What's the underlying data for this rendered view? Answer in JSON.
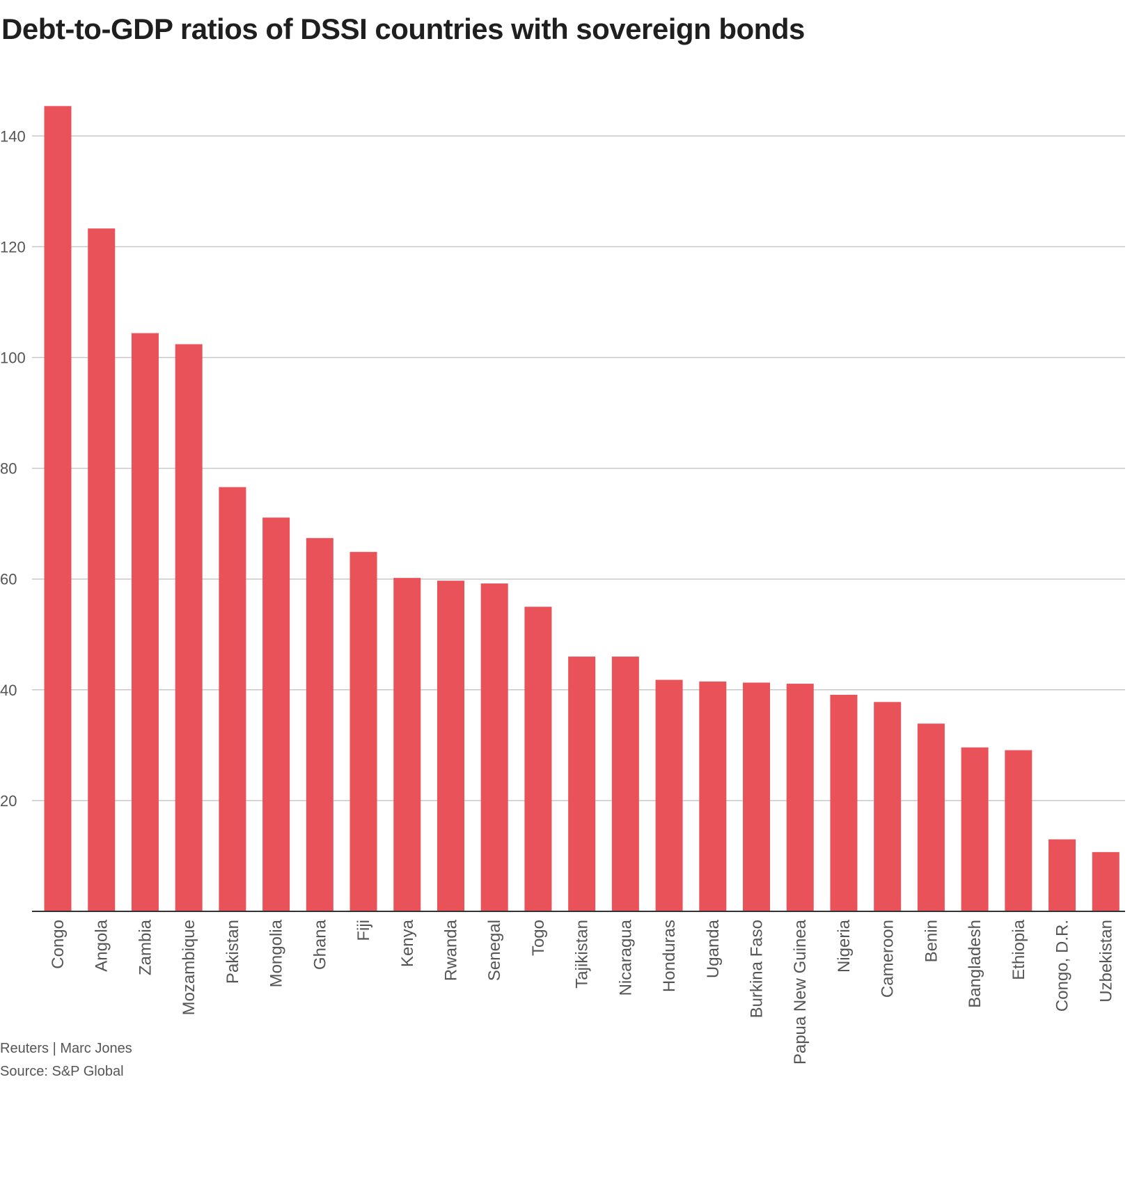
{
  "title": "Debt-to-GDP ratios of DSSI countries with sovereign  bonds",
  "credit": "Reuters | Marc Jones",
  "source": "Source: S&P Global",
  "chart_data": {
    "type": "bar",
    "categories": [
      "Congo",
      "Angola",
      "Zambia",
      "Mozambique",
      "Pakistan",
      "Mongolia",
      "Ghana",
      "Fiji",
      "Kenya",
      "Rwanda",
      "Senegal",
      "Togo",
      "Tajikistan",
      "Nicaragua",
      "Honduras",
      "Uganda",
      "Burkina Faso",
      "Papua New Guinea",
      "Nigeria",
      "Cameroon",
      "Benin",
      "Bangladesh",
      "Ethiopia",
      "Congo, D.R.",
      "Uzbekistan"
    ],
    "values": [
      145.4,
      123.3,
      104.4,
      102.4,
      76.6,
      71.1,
      67.4,
      64.9,
      60.2,
      59.7,
      59.2,
      55.0,
      46.0,
      46.0,
      41.8,
      41.5,
      41.3,
      41.1,
      39.1,
      37.8,
      33.9,
      29.6,
      29.1,
      13.0,
      10.7
    ],
    "yticks": [
      20,
      40,
      60,
      80,
      100,
      120,
      140
    ],
    "ylim": [
      0,
      150
    ],
    "grid": true,
    "bar_color": "#ea525a",
    "title": "Debt-to-GDP ratios of DSSI countries with sovereign  bonds",
    "xlabel": "",
    "ylabel": ""
  }
}
